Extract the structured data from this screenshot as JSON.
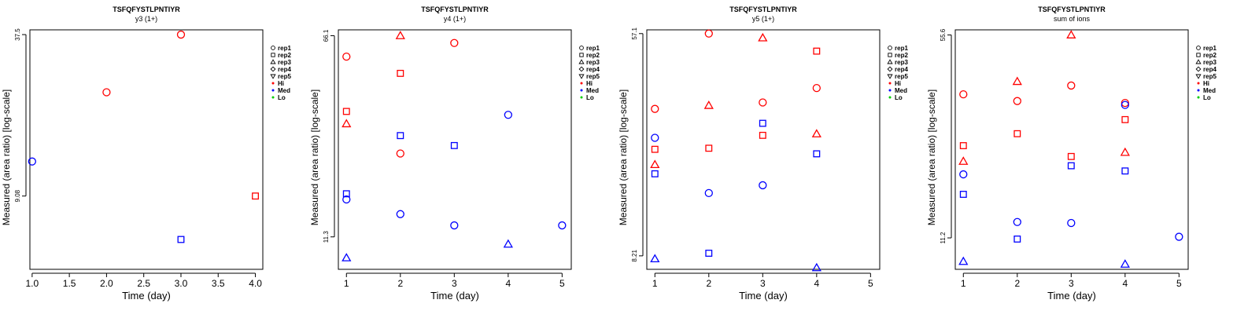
{
  "colors": {
    "Hi": "#ff0000",
    "Med": "#0000ff",
    "Lo": "#00cc00",
    "axis": "#000000"
  },
  "legend_labels": [
    "rep1",
    "rep2",
    "rep3",
    "rep4",
    "rep5",
    "Hi",
    "Med",
    "Lo"
  ],
  "legend_marker_names": [
    "circle-icon",
    "square-icon",
    "triangle-up-icon",
    "diamond-icon",
    "triangle-down-icon",
    "red-dot-icon",
    "blue-dot-icon",
    "green-dot-icon"
  ],
  "chart_data": [
    {
      "type": "scatter",
      "title": "TSFQFYSTLPNTIYR",
      "subtitle": "y3 (1+)",
      "xlabel": "Time (day)",
      "ylabel": "Measured (area ratio) [log-scale]",
      "y_scale": "log",
      "xlim": [
        0.97,
        4.1
      ],
      "ylim": [
        4.77,
        39.1
      ],
      "xticks": [
        "1.0",
        "1.5",
        "2.0",
        "2.5",
        "3.0",
        "3.5",
        "4.0"
      ],
      "xtick_values": [
        1.0,
        1.5,
        2.0,
        2.5,
        3.0,
        3.5,
        4.0
      ],
      "yticks": [
        "9.08",
        "37.5"
      ],
      "ytick_values": [
        9.08,
        37.5
      ],
      "points": [
        {
          "x": 1,
          "y": 12.3,
          "rep": "rep1",
          "group": "Med"
        },
        {
          "x": 2,
          "y": 22.6,
          "rep": "rep1",
          "group": "Hi"
        },
        {
          "x": 3,
          "y": 37.5,
          "rep": "rep1",
          "group": "Hi"
        },
        {
          "x": 4,
          "y": 9.08,
          "rep": "rep2",
          "group": "Hi"
        },
        {
          "x": 3,
          "y": 6.2,
          "rep": "rep2",
          "group": "Med"
        }
      ]
    },
    {
      "type": "scatter",
      "title": "TSFQFYSTLPNTIYR",
      "subtitle": "y4 (1+)",
      "xlabel": "Time (day)",
      "ylabel": "Measured (area ratio) [log-scale]",
      "y_scale": "log",
      "xlim": [
        0.85,
        5.17
      ],
      "ylim": [
        8.5,
        69.6
      ],
      "xticks": [
        "1",
        "2",
        "3",
        "4",
        "5"
      ],
      "xtick_values": [
        1,
        2,
        3,
        4,
        5
      ],
      "yticks": [
        "11.3",
        "66.1"
      ],
      "ytick_values": [
        11.3,
        66.1
      ],
      "points": [
        {
          "x": 1,
          "y": 55.0,
          "rep": "rep1",
          "group": "Hi"
        },
        {
          "x": 2,
          "y": 23.5,
          "rep": "rep1",
          "group": "Hi"
        },
        {
          "x": 3,
          "y": 62.0,
          "rep": "rep1",
          "group": "Hi"
        },
        {
          "x": 1,
          "y": 15.7,
          "rep": "rep1",
          "group": "Med"
        },
        {
          "x": 2,
          "y": 13.8,
          "rep": "rep1",
          "group": "Med"
        },
        {
          "x": 3,
          "y": 12.5,
          "rep": "rep1",
          "group": "Med"
        },
        {
          "x": 4,
          "y": 33.0,
          "rep": "rep1",
          "group": "Med"
        },
        {
          "x": 5,
          "y": 12.5,
          "rep": "rep1",
          "group": "Med"
        },
        {
          "x": 1,
          "y": 34.0,
          "rep": "rep2",
          "group": "Hi"
        },
        {
          "x": 2,
          "y": 47.5,
          "rep": "rep2",
          "group": "Hi"
        },
        {
          "x": 1,
          "y": 16.5,
          "rep": "rep2",
          "group": "Med"
        },
        {
          "x": 2,
          "y": 27.5,
          "rep": "rep2",
          "group": "Med"
        },
        {
          "x": 3,
          "y": 25.2,
          "rep": "rep2",
          "group": "Med"
        },
        {
          "x": 1,
          "y": 30.5,
          "rep": "rep3",
          "group": "Hi"
        },
        {
          "x": 2,
          "y": 66.1,
          "rep": "rep3",
          "group": "Hi"
        },
        {
          "x": 1,
          "y": 9.4,
          "rep": "rep3",
          "group": "Med"
        },
        {
          "x": 4,
          "y": 10.6,
          "rep": "rep3",
          "group": "Med"
        }
      ]
    },
    {
      "type": "scatter",
      "title": "TSFQFYSTLPNTIYR",
      "subtitle": "y5 (1+)",
      "xlabel": "Time (day)",
      "ylabel": "Measured (area ratio) [log-scale]",
      "y_scale": "log",
      "xlim": [
        0.85,
        5.17
      ],
      "ylim": [
        7.3,
        59.0
      ],
      "xticks": [
        "1",
        "2",
        "3",
        "4",
        "5"
      ],
      "xtick_values": [
        1,
        2,
        3,
        4,
        5
      ],
      "yticks": [
        "8.21",
        "57.1"
      ],
      "ytick_values": [
        8.21,
        57.1
      ],
      "points": [
        {
          "x": 1,
          "y": 29.6,
          "rep": "rep1",
          "group": "Hi"
        },
        {
          "x": 2,
          "y": 57.1,
          "rep": "rep1",
          "group": "Hi"
        },
        {
          "x": 3,
          "y": 31.3,
          "rep": "rep1",
          "group": "Hi"
        },
        {
          "x": 4,
          "y": 35.5,
          "rep": "rep1",
          "group": "Hi"
        },
        {
          "x": 1,
          "y": 23.0,
          "rep": "rep1",
          "group": "Med"
        },
        {
          "x": 2,
          "y": 14.2,
          "rep": "rep1",
          "group": "Med"
        },
        {
          "x": 3,
          "y": 15.2,
          "rep": "rep1",
          "group": "Med"
        },
        {
          "x": 1,
          "y": 20.8,
          "rep": "rep2",
          "group": "Hi"
        },
        {
          "x": 2,
          "y": 21.0,
          "rep": "rep2",
          "group": "Hi"
        },
        {
          "x": 3,
          "y": 23.5,
          "rep": "rep2",
          "group": "Hi"
        },
        {
          "x": 4,
          "y": 49.0,
          "rep": "rep2",
          "group": "Hi"
        },
        {
          "x": 1,
          "y": 16.8,
          "rep": "rep2",
          "group": "Med"
        },
        {
          "x": 2,
          "y": 8.4,
          "rep": "rep2",
          "group": "Med"
        },
        {
          "x": 3,
          "y": 26.1,
          "rep": "rep2",
          "group": "Med"
        },
        {
          "x": 4,
          "y": 20.0,
          "rep": "rep2",
          "group": "Med"
        },
        {
          "x": 1,
          "y": 18.2,
          "rep": "rep3",
          "group": "Hi"
        },
        {
          "x": 2,
          "y": 30.5,
          "rep": "rep3",
          "group": "Hi"
        },
        {
          "x": 3,
          "y": 55.0,
          "rep": "rep3",
          "group": "Hi"
        },
        {
          "x": 4,
          "y": 23.8,
          "rep": "rep3",
          "group": "Hi"
        },
        {
          "x": 1,
          "y": 8.0,
          "rep": "rep3",
          "group": "Med"
        },
        {
          "x": 4,
          "y": 7.4,
          "rep": "rep3",
          "group": "Med"
        }
      ]
    },
    {
      "type": "scatter",
      "title": "TSFQFYSTLPNTIYR",
      "subtitle": "sum of ions",
      "xlabel": "Time (day)",
      "ylabel": "Measured (area ratio) [log-scale]",
      "y_scale": "log",
      "xlim": [
        0.85,
        5.17
      ],
      "ylim": [
        8.74,
        57.9
      ],
      "xticks": [
        "1",
        "2",
        "3",
        "4",
        "5"
      ],
      "xtick_values": [
        1,
        2,
        3,
        4,
        5
      ],
      "yticks": [
        "11.2",
        "55.6"
      ],
      "ytick_values": [
        11.2,
        55.6
      ],
      "points": [
        {
          "x": 1,
          "y": 34.8,
          "rep": "rep1",
          "group": "Hi"
        },
        {
          "x": 2,
          "y": 33.0,
          "rep": "rep1",
          "group": "Hi"
        },
        {
          "x": 3,
          "y": 37.3,
          "rep": "rep1",
          "group": "Hi"
        },
        {
          "x": 4,
          "y": 32.5,
          "rep": "rep1",
          "group": "Hi"
        },
        {
          "x": 1,
          "y": 18.5,
          "rep": "rep1",
          "group": "Med"
        },
        {
          "x": 2,
          "y": 12.7,
          "rep": "rep1",
          "group": "Med"
        },
        {
          "x": 3,
          "y": 12.6,
          "rep": "rep1",
          "group": "Med"
        },
        {
          "x": 4,
          "y": 32.0,
          "rep": "rep1",
          "group": "Med"
        },
        {
          "x": 5,
          "y": 11.3,
          "rep": "rep1",
          "group": "Med"
        },
        {
          "x": 1,
          "y": 23.2,
          "rep": "rep2",
          "group": "Hi"
        },
        {
          "x": 2,
          "y": 25.5,
          "rep": "rep2",
          "group": "Hi"
        },
        {
          "x": 3,
          "y": 21.3,
          "rep": "rep2",
          "group": "Hi"
        },
        {
          "x": 4,
          "y": 28.5,
          "rep": "rep2",
          "group": "Hi"
        },
        {
          "x": 1,
          "y": 15.8,
          "rep": "rep2",
          "group": "Med"
        },
        {
          "x": 2,
          "y": 11.1,
          "rep": "rep2",
          "group": "Med"
        },
        {
          "x": 3,
          "y": 19.8,
          "rep": "rep2",
          "group": "Med"
        },
        {
          "x": 4,
          "y": 19.0,
          "rep": "rep2",
          "group": "Med"
        },
        {
          "x": 1,
          "y": 20.5,
          "rep": "rep3",
          "group": "Hi"
        },
        {
          "x": 2,
          "y": 38.5,
          "rep": "rep3",
          "group": "Hi"
        },
        {
          "x": 3,
          "y": 55.6,
          "rep": "rep3",
          "group": "Hi"
        },
        {
          "x": 4,
          "y": 22.0,
          "rep": "rep3",
          "group": "Hi"
        },
        {
          "x": 1,
          "y": 9.3,
          "rep": "rep3",
          "group": "Med"
        },
        {
          "x": 4,
          "y": 9.1,
          "rep": "rep3",
          "group": "Med"
        }
      ]
    }
  ]
}
